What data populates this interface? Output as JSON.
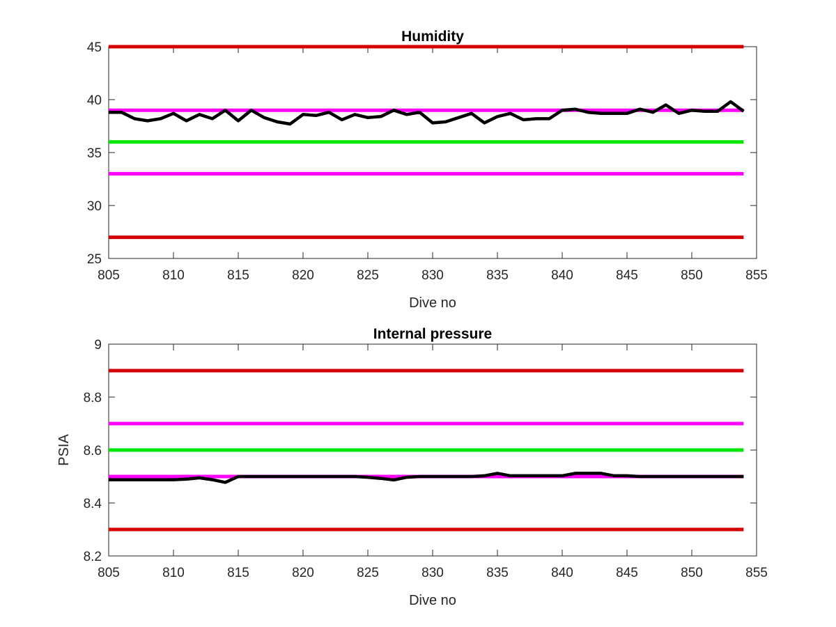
{
  "chart_data": [
    {
      "type": "line",
      "title": "Humidity",
      "xlabel": "Dive no",
      "ylabel": "",
      "xlim": [
        805,
        855
      ],
      "ylim": [
        25,
        45
      ],
      "xticks": [
        805,
        810,
        815,
        820,
        825,
        830,
        835,
        840,
        845,
        850,
        855
      ],
      "yticks": [
        25,
        30,
        35,
        40,
        45
      ],
      "grid": false,
      "reference_lines": [
        {
          "y": 45,
          "color": "#d40000"
        },
        {
          "y": 39,
          "color": "#ff00ff"
        },
        {
          "y": 36,
          "color": "#00e600"
        },
        {
          "y": 33,
          "color": "#ff00ff"
        },
        {
          "y": 27,
          "color": "#d40000"
        }
      ],
      "series": [
        {
          "color": "#000000",
          "x": [
            805,
            806,
            807,
            808,
            809,
            810,
            811,
            812,
            813,
            814,
            815,
            816,
            817,
            818,
            819,
            820,
            821,
            822,
            823,
            824,
            825,
            826,
            827,
            828,
            829,
            830,
            831,
            832,
            833,
            834,
            835,
            836,
            837,
            838,
            839,
            840,
            841,
            842,
            843,
            844,
            845,
            846,
            847,
            848,
            849,
            850,
            851,
            852,
            853,
            854
          ],
          "values": [
            38.8,
            38.8,
            38.2,
            38.0,
            38.2,
            38.7,
            38.0,
            38.6,
            38.2,
            39.0,
            38.0,
            39.0,
            38.3,
            37.9,
            37.7,
            38.6,
            38.5,
            38.8,
            38.1,
            38.6,
            38.3,
            38.4,
            39.0,
            38.6,
            38.8,
            37.8,
            37.9,
            38.3,
            38.7,
            37.8,
            38.4,
            38.7,
            38.1,
            38.2,
            38.2,
            39.0,
            39.1,
            38.8,
            38.7,
            38.7,
            38.7,
            39.1,
            38.8,
            39.5,
            38.7,
            39.0,
            38.9,
            38.9,
            39.8,
            38.9
          ]
        }
      ]
    },
    {
      "type": "line",
      "title": "Internal pressure",
      "xlabel": "Dive no",
      "ylabel": "PSIA",
      "xlim": [
        805,
        855
      ],
      "ylim": [
        8.2,
        9
      ],
      "xticks": [
        805,
        810,
        815,
        820,
        825,
        830,
        835,
        840,
        845,
        850,
        855
      ],
      "yticks": [
        8.2,
        8.4,
        8.6,
        8.8,
        9
      ],
      "grid": false,
      "reference_lines": [
        {
          "y": 8.9,
          "color": "#d40000"
        },
        {
          "y": 8.7,
          "color": "#ff00ff"
        },
        {
          "y": 8.6,
          "color": "#00e600"
        },
        {
          "y": 8.5,
          "color": "#ff00ff"
        },
        {
          "y": 8.3,
          "color": "#d40000"
        }
      ],
      "series": [
        {
          "color": "#000000",
          "x": [
            805,
            806,
            807,
            808,
            809,
            810,
            811,
            812,
            813,
            814,
            815,
            816,
            817,
            818,
            819,
            820,
            821,
            822,
            823,
            824,
            825,
            826,
            827,
            828,
            829,
            830,
            831,
            832,
            833,
            834,
            835,
            836,
            837,
            838,
            839,
            840,
            841,
            842,
            843,
            844,
            845,
            846,
            847,
            848,
            849,
            850,
            851,
            852,
            853,
            854
          ],
          "values": [
            8.488,
            8.488,
            8.488,
            8.488,
            8.488,
            8.488,
            8.49,
            8.495,
            8.488,
            8.478,
            8.5,
            8.5,
            8.5,
            8.5,
            8.5,
            8.5,
            8.5,
            8.5,
            8.5,
            8.5,
            8.497,
            8.493,
            8.487,
            8.497,
            8.5,
            8.5,
            8.5,
            8.5,
            8.5,
            8.503,
            8.512,
            8.503,
            8.503,
            8.503,
            8.503,
            8.503,
            8.512,
            8.512,
            8.512,
            8.503,
            8.503,
            8.5,
            8.5,
            8.5,
            8.5,
            8.5,
            8.5,
            8.5,
            8.5,
            8.5
          ]
        }
      ]
    }
  ]
}
